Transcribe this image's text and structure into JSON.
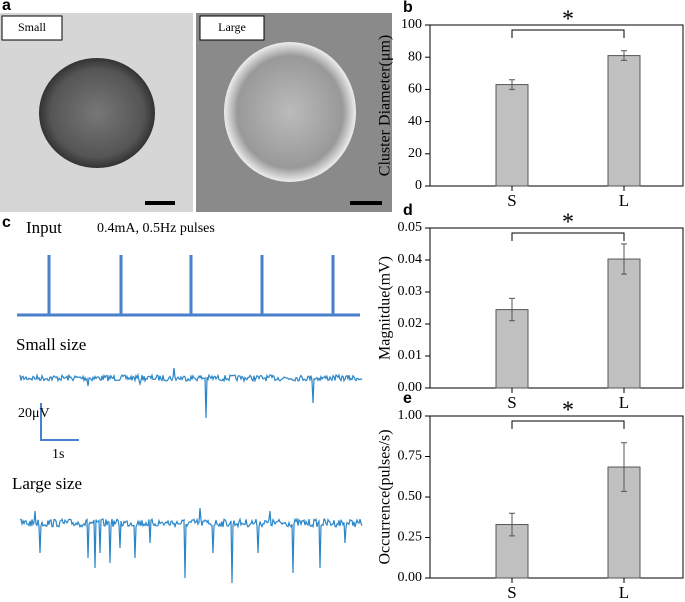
{
  "image_panel": {
    "label": "a",
    "images": [
      "Small",
      "Large"
    ]
  },
  "trace_panel": {
    "label": "c",
    "input": "Input",
    "stimulus": "0.4mA, 0.5Hz pulses",
    "traces": [
      "Small size",
      "Large size"
    ],
    "scale_y": "20μV",
    "scale_x": "1s"
  },
  "chart_data": [
    {
      "type": "bar",
      "panel": "b",
      "ylabel": "Cluster Diameter(μm)",
      "categories": [
        "S",
        "L"
      ],
      "values": [
        63,
        81
      ],
      "errors": [
        3,
        3
      ],
      "color": "#c0c0c0",
      "ylim": [
        0,
        100
      ],
      "yticks": [
        0,
        20,
        40,
        60,
        80,
        100
      ],
      "annotation": "*"
    },
    {
      "type": "bar",
      "panel": "d",
      "ylabel": "Magnitdue(mV)",
      "categories": [
        "S",
        "L"
      ],
      "values": [
        0.0245,
        0.0403
      ],
      "errors": [
        0.0035,
        0.0047
      ],
      "color": "#c0c0c0",
      "ylim": [
        0,
        0.05
      ],
      "yticks": [
        {
          "value": 0,
          "label": "0.00"
        },
        {
          "value": 0.01,
          "label": "0.01"
        },
        {
          "value": 0.02,
          "label": "0.02"
        },
        {
          "value": 0.03,
          "label": "0.03"
        },
        {
          "value": 0.04,
          "label": "0.04"
        },
        {
          "value": 0.05,
          "label": "0.05"
        }
      ],
      "annotation": "*"
    },
    {
      "type": "bar",
      "panel": "e",
      "ylabel": "Occurrence(pulses/s)",
      "categories": [
        "S",
        "L"
      ],
      "values": [
        0.33,
        0.685
      ],
      "errors": [
        0.07,
        0.15
      ],
      "color": "#c0c0c0",
      "ylim": [
        0,
        1
      ],
      "yticks": [
        {
          "value": 0,
          "label": "0.00"
        },
        {
          "value": 0.25,
          "label": "0.25"
        },
        {
          "value": 0.5,
          "label": "0.50"
        },
        {
          "value": 0.75,
          "label": "0.75"
        },
        {
          "value": 1,
          "label": "1.00"
        }
      ],
      "annotation": "*"
    }
  ]
}
